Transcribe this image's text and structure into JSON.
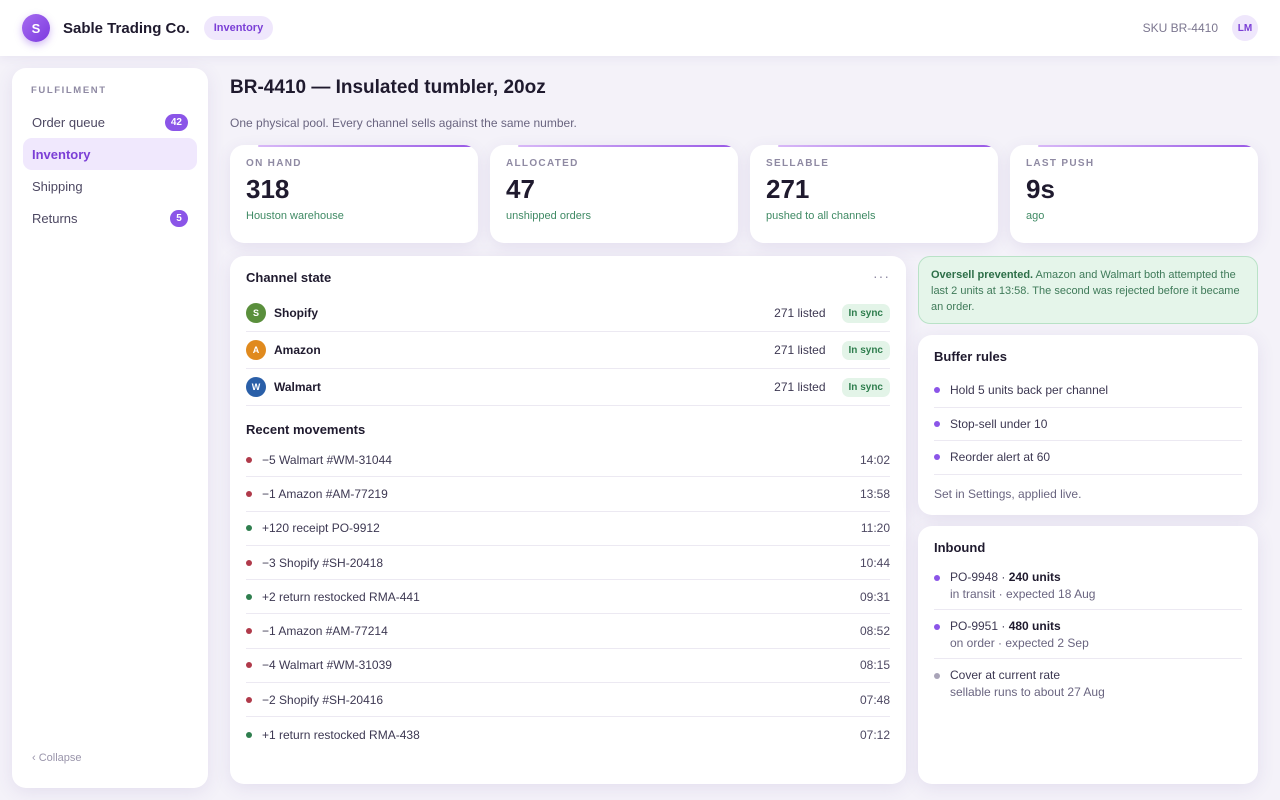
{
  "app": {
    "logo_letter": "S",
    "name": "Sable Trading Co.",
    "section_pill": "Inventory",
    "sku_label": "SKU BR-4410",
    "user_initials": "LM"
  },
  "sidebar": {
    "section_label": "FULFILMENT",
    "items": [
      {
        "label": "Order queue",
        "badge": "42"
      },
      {
        "label": "Inventory",
        "badge": ""
      },
      {
        "label": "Shipping",
        "badge": ""
      },
      {
        "label": "Returns",
        "badge": "5"
      }
    ],
    "collapse_label": "‹ Collapse"
  },
  "header": {
    "title": "BR-4410 — Insulated tumbler, 20oz",
    "subtitle": "One physical pool. Every channel sells against the same number."
  },
  "stats": [
    {
      "label": "ON HAND",
      "value": "318",
      "sub": "Houston warehouse"
    },
    {
      "label": "ALLOCATED",
      "value": "47",
      "sub": "unshipped orders"
    },
    {
      "label": "SELLABLE",
      "value": "271",
      "sub": "pushed to all channels"
    },
    {
      "label": "LAST PUSH",
      "value": "9s",
      "sub": "ago"
    }
  ],
  "channel_state": {
    "title": "Channel state",
    "more_label": "···",
    "channels": [
      {
        "initial": "S",
        "name": "Shopify",
        "listed": "271 listed",
        "status": "In sync",
        "color": "#5a8f3c"
      },
      {
        "initial": "A",
        "name": "Amazon",
        "listed": "271 listed",
        "status": "In sync",
        "color": "#e08a1e"
      },
      {
        "initial": "W",
        "name": "Walmart",
        "listed": "271 listed",
        "status": "In sync",
        "color": "#2a5fa8"
      }
    ]
  },
  "movements": {
    "title": "Recent movements",
    "rows": [
      {
        "text": "−5 Walmart #WM-31044",
        "time": "14:02",
        "kind": "out"
      },
      {
        "text": "−1 Amazon #AM-77219",
        "time": "13:58",
        "kind": "out"
      },
      {
        "text": "+120 receipt PO-9912",
        "time": "11:20",
        "kind": "in"
      },
      {
        "text": "−3 Shopify #SH-20418",
        "time": "10:44",
        "kind": "out"
      },
      {
        "text": "+2 return restocked RMA-441",
        "time": "09:31",
        "kind": "in"
      },
      {
        "text": "−1 Amazon #AM-77214",
        "time": "08:52",
        "kind": "out"
      },
      {
        "text": "−4 Walmart #WM-31039",
        "time": "08:15",
        "kind": "out"
      },
      {
        "text": "−2 Shopify #SH-20416",
        "time": "07:48",
        "kind": "out"
      },
      {
        "text": "+1 return restocked RMA-438",
        "time": "07:12",
        "kind": "in"
      }
    ]
  },
  "alert": {
    "bold": "Oversell prevented.",
    "text": " Amazon and Walmart both attempted the last 2 units at 13:58. The second was rejected before it became an order."
  },
  "buffer_rules": {
    "title": "Buffer rules",
    "rules": [
      "Hold 5 units back per channel",
      "Stop-sell under 10",
      "Reorder alert at 60"
    ],
    "note": "Set in Settings, applied live."
  },
  "inbound": {
    "title": "Inbound",
    "items": [
      {
        "po": "PO-9948 · ",
        "units": "240 units",
        "sub": "in transit · expected 18 Aug",
        "dot": "purple"
      },
      {
        "po": "PO-9951 · ",
        "units": "480 units",
        "sub": "on order · expected 2 Sep",
        "dot": "purple"
      },
      {
        "po": "Cover at current rate",
        "units": "",
        "sub": "sellable runs to about 27 Aug",
        "dot": "grey"
      }
    ]
  },
  "colors": {
    "accent": "#7b3fd6",
    "out_dot": "#b03a4a",
    "in_dot": "#2f7e4e",
    "rule_dot": "#8b55e8",
    "grey_dot": "#a9a4b8"
  }
}
